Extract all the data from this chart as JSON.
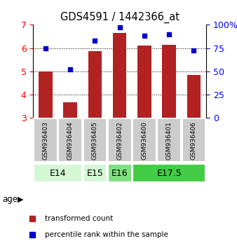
{
  "title": "GDS4591 / 1442366_at",
  "samples": [
    "GSM936403",
    "GSM936404",
    "GSM936405",
    "GSM936402",
    "GSM936400",
    "GSM936401",
    "GSM936406"
  ],
  "transformed_counts": [
    5.0,
    3.65,
    5.85,
    6.65,
    6.1,
    6.15,
    4.85
  ],
  "percentile_ranks": [
    75,
    52,
    83,
    97,
    88,
    90,
    72
  ],
  "ylim_left": [
    3,
    7
  ],
  "ylim_right": [
    0,
    100
  ],
  "yticks_left": [
    3,
    4,
    5,
    6,
    7
  ],
  "yticks_right": [
    0,
    25,
    50,
    75,
    100
  ],
  "ytick_labels_right": [
    "0",
    "25",
    "50",
    "75",
    "100%"
  ],
  "bar_color": "#b22222",
  "dot_color": "#0000cc",
  "age_groups": [
    {
      "label": "E14",
      "samples": [
        0,
        1
      ],
      "color": "#d4f7d4"
    },
    {
      "label": "E15",
      "samples": [
        2
      ],
      "color": "#d4f7d4"
    },
    {
      "label": "E16",
      "samples": [
        3
      ],
      "color": "#7fe07f"
    },
    {
      "label": "E17.5",
      "samples": [
        4,
        5,
        6
      ],
      "color": "#44cc44"
    }
  ],
  "legend_bar_label": "transformed count",
  "legend_dot_label": "percentile rank within the sample",
  "age_label": "age",
  "background_color": "#ffffff",
  "sample_box_color": "#cccccc",
  "grid_dotted_ticks": [
    4,
    5,
    6
  ]
}
